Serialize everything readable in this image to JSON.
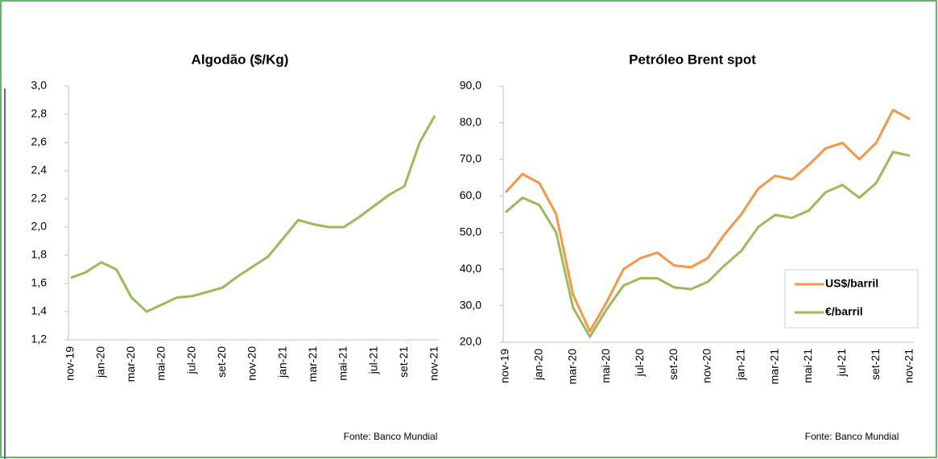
{
  "chart_data": [
    {
      "type": "line",
      "title": "Algodão ($/Kg)",
      "source": "Fonte: Banco Mundial",
      "categories": [
        "nov-19",
        null,
        "jan-20",
        null,
        "mar-20",
        null,
        "mai-20",
        null,
        "jul-20",
        null,
        "set-20",
        null,
        "nov-20",
        null,
        "jan-21",
        null,
        "mar-21",
        null,
        "mai-21",
        null,
        "jul-21",
        null,
        "set-21",
        null,
        "nov-21"
      ],
      "series": [
        {
          "name": "Algodão",
          "color": "#9bbb59",
          "values": [
            1.64,
            1.68,
            1.75,
            1.7,
            1.5,
            1.4,
            1.45,
            1.5,
            1.51,
            1.54,
            1.57,
            1.65,
            1.72,
            1.79,
            1.92,
            2.05,
            2.02,
            2.0,
            2.0,
            2.07,
            2.15,
            2.23,
            2.29,
            2.6,
            2.79
          ]
        }
      ],
      "ylim": [
        1.2,
        3.0
      ],
      "yticks": [
        {
          "value": 1.2,
          "label": "1,2"
        },
        {
          "value": 1.4,
          "label": "1,4"
        },
        {
          "value": 1.6,
          "label": "1,6"
        },
        {
          "value": 1.8,
          "label": "1,8"
        },
        {
          "value": 2.0,
          "label": "2,0"
        },
        {
          "value": 2.2,
          "label": "2,2"
        },
        {
          "value": 2.4,
          "label": "2,4"
        },
        {
          "value": 2.6,
          "label": "2,6"
        },
        {
          "value": 2.8,
          "label": "2,8"
        },
        {
          "value": 3.0,
          "label": "3,0"
        }
      ],
      "legend": false
    },
    {
      "type": "line",
      "title": "Petróleo Brent spot",
      "source": "Fonte: Banco Mundial",
      "categories": [
        "nov-19",
        null,
        "jan-20",
        null,
        "mar-20",
        null,
        "mai-20",
        null,
        "jul-20",
        null,
        "set-20",
        null,
        "nov-20",
        null,
        "jan-21",
        null,
        "mar-21",
        null,
        "mai-21",
        null,
        "jul-21",
        null,
        "set-21",
        null,
        "nov-21"
      ],
      "series": [
        {
          "name": "US$/barril",
          "color": "#f79646",
          "values": [
            61,
            66,
            63.5,
            55,
            33,
            23,
            31,
            40,
            43,
            44.5,
            41,
            40.5,
            43,
            49.5,
            55,
            62,
            65.5,
            64.5,
            68.5,
            73,
            74.5,
            70,
            74.5,
            83.5,
            81
          ]
        },
        {
          "name": "€/barril",
          "color": "#9bbb59",
          "values": [
            55.5,
            59.5,
            57.5,
            50,
            29.5,
            21.5,
            29,
            35.5,
            37.5,
            37.5,
            35,
            34.5,
            36.5,
            41,
            45,
            51.5,
            54.8,
            54,
            56,
            61,
            63,
            59.5,
            63.5,
            72,
            71
          ]
        }
      ],
      "ylim": [
        20,
        90
      ],
      "yticks": [
        {
          "value": 20,
          "label": "20,0"
        },
        {
          "value": 30,
          "label": "30,0"
        },
        {
          "value": 40,
          "label": "40,0"
        },
        {
          "value": 50,
          "label": "50,0"
        },
        {
          "value": 60,
          "label": "60,0"
        },
        {
          "value": 70,
          "label": "70,0"
        },
        {
          "value": 80,
          "label": "80,0"
        },
        {
          "value": 90,
          "label": "90,0"
        }
      ],
      "legend": "lower right"
    }
  ]
}
